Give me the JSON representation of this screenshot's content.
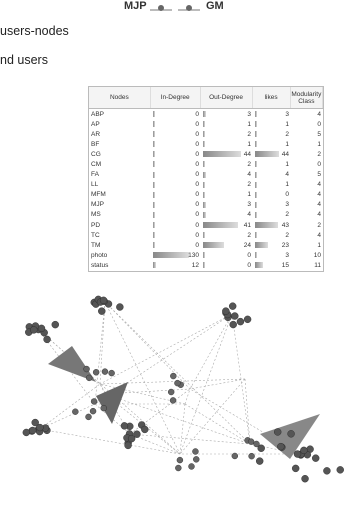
{
  "header": {
    "left_label": "MJP",
    "right_label": "GM"
  },
  "lines": [
    "users-nodes",
    "nd users"
  ],
  "table": {
    "columns": [
      "Nodes",
      "In-Degree",
      "Out-Degree",
      "likes",
      "Modularity Class"
    ],
    "rows": [
      [
        "ABP",
        0,
        3,
        3,
        4
      ],
      [
        "AP",
        0,
        1,
        1,
        0
      ],
      [
        "AR",
        0,
        2,
        2,
        5
      ],
      [
        "BF",
        0,
        1,
        1,
        1
      ],
      [
        "CG",
        0,
        44,
        44,
        2
      ],
      [
        "CM",
        0,
        2,
        1,
        0
      ],
      [
        "FA",
        0,
        4,
        4,
        5
      ],
      [
        "LL",
        0,
        2,
        1,
        4
      ],
      [
        "MFM",
        0,
        1,
        0,
        4
      ],
      [
        "MJP",
        0,
        3,
        3,
        4
      ],
      [
        "MS",
        0,
        4,
        2,
        4
      ],
      [
        "PD",
        0,
        41,
        43,
        2
      ],
      [
        "TC",
        0,
        2,
        2,
        4
      ],
      [
        "TM",
        0,
        24,
        23,
        1
      ],
      [
        "photo",
        130,
        0,
        3,
        10
      ],
      [
        "status",
        12,
        0,
        15,
        11
      ]
    ]
  }
}
